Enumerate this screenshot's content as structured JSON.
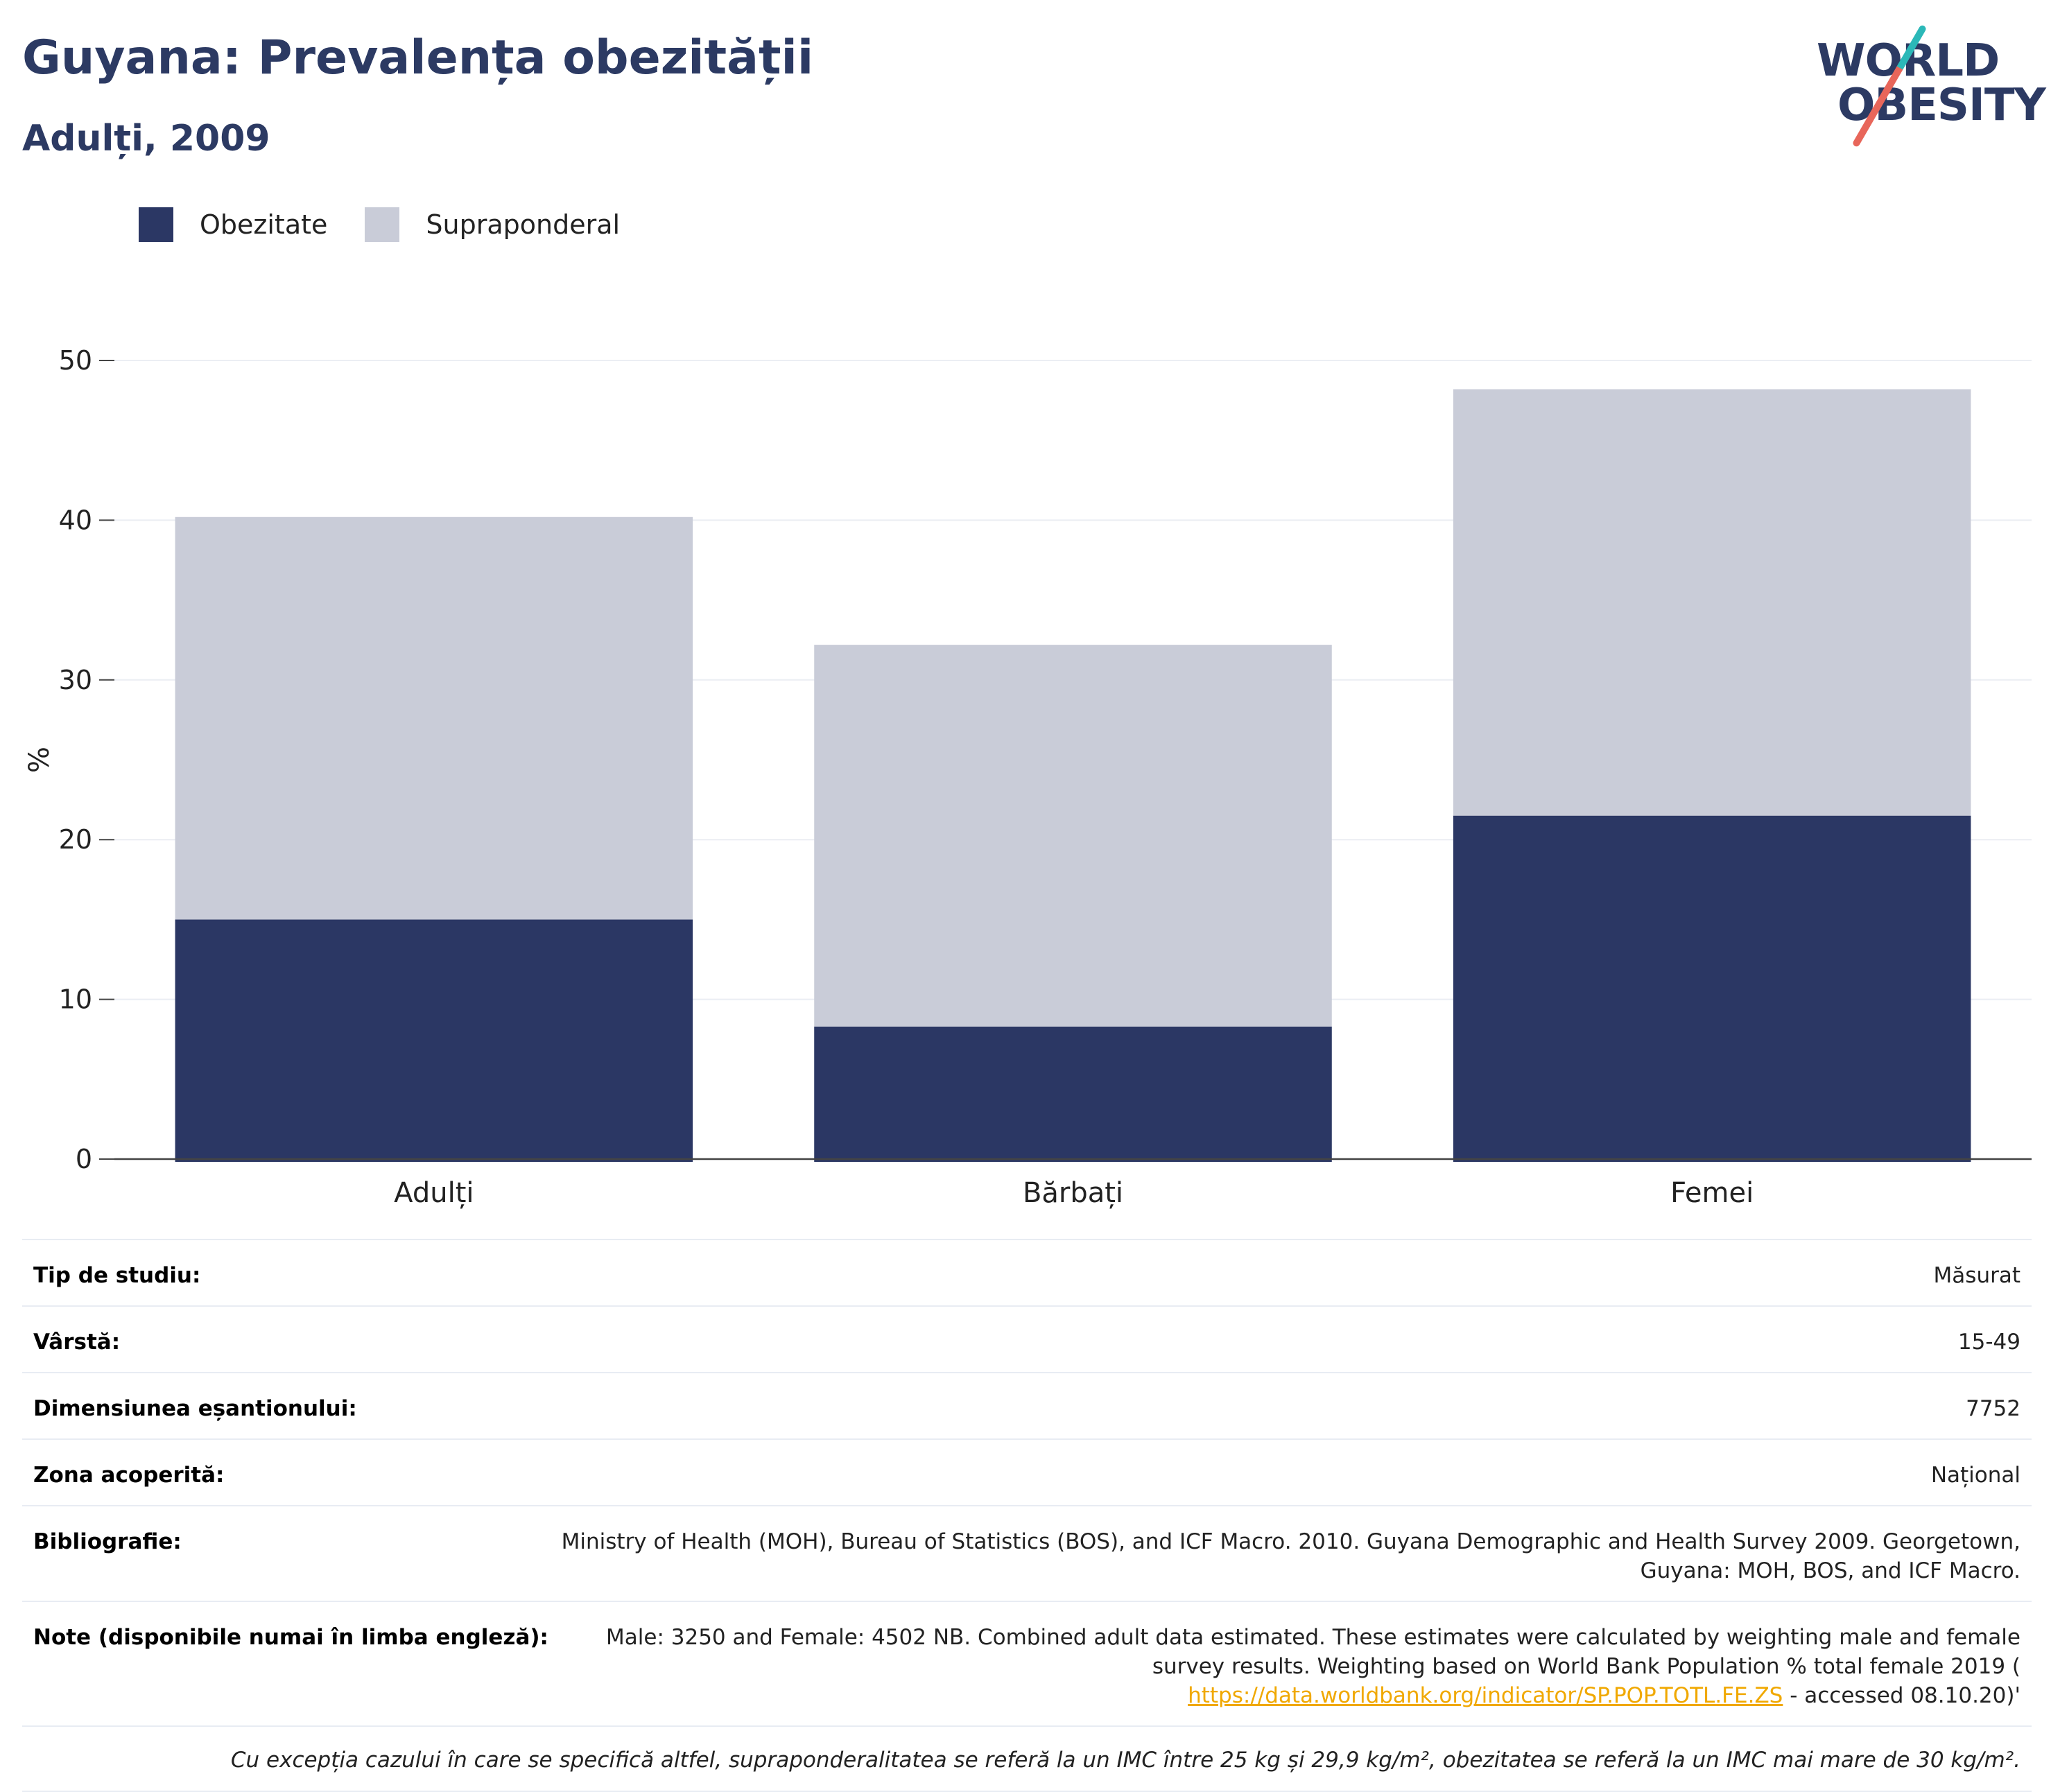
{
  "header": {
    "title": "Guyana: Prevalența obezității",
    "subtitle": "Adulți, 2009",
    "logo_line1": "WORLD",
    "logo_line2": "OBESITY"
  },
  "colors": {
    "obesity": "#2b3764",
    "overweight": "#c9ccd8",
    "title": "#2c3a63",
    "link": "#f0a800"
  },
  "chart_data": {
    "type": "bar",
    "stacked": true,
    "categories": [
      "Adulți",
      "Bărbați",
      "Femei"
    ],
    "series": [
      {
        "name": "Obezitate",
        "values": [
          15.0,
          8.3,
          21.5
        ]
      },
      {
        "name": "Supraponderal",
        "values": [
          25.2,
          23.9,
          26.7
        ]
      }
    ],
    "ylabel": "%",
    "ylim": [
      0,
      50
    ],
    "yticks": [
      0,
      10,
      20,
      30,
      40,
      50
    ],
    "grid": true,
    "legend": "top-left"
  },
  "meta": {
    "rows": [
      {
        "key": "Tip de studiu:",
        "value": "Măsurat"
      },
      {
        "key": "Vârstă:",
        "value": "15-49"
      },
      {
        "key": "Dimensiunea eșantionului:",
        "value": "7752"
      },
      {
        "key": "Zona acoperită:",
        "value": "Național"
      },
      {
        "key": "Bibliografie:",
        "value": "Ministry of Health (MOH), Bureau of Statistics (BOS), and ICF Macro. 2010. Guyana Demographic and Health Survey 2009. Georgetown, Guyana: MOH, BOS, and ICF Macro."
      }
    ],
    "notes_key": "Note (disponibile numai în limba engleză):",
    "notes_text": "Male: 3250 and Female: 4502 NB. Combined adult data estimated. These estimates were calculated by weighting male and female survey results. Weighting based on World Bank Population % total female 2019 (",
    "notes_link": "https://data.worldbank.org/indicator/SP.POP.TOTL.FE.ZS",
    "notes_after": " - accessed 08.10.20)'",
    "footnote": "Cu excepția cazului în care se specifică altfel, supraponderalitatea se referă la un IMC între 25 kg și 29,9 kg/m², obezitatea se referă la un IMC mai mare de 30 kg/m²."
  }
}
